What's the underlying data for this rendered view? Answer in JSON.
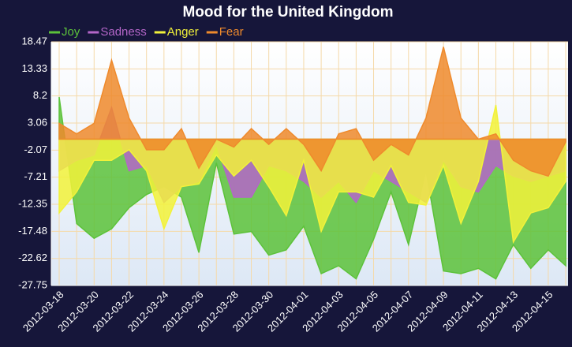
{
  "chart_data": {
    "type": "area",
    "title": "Mood for the United Kingdom",
    "categories": [
      "2012-03-18",
      null,
      "2012-03-20",
      null,
      "2012-03-22",
      null,
      "2012-03-24",
      null,
      "2012-03-26",
      null,
      "2012-03-28",
      null,
      "2012-03-30",
      null,
      "2012-04-01",
      null,
      "2012-04-03",
      null,
      "2012-04-05",
      null,
      "2012-04-07",
      null,
      "2012-04-09",
      null,
      "2012-04-11",
      null,
      "2012-04-13",
      null,
      "2012-04-15",
      null
    ],
    "series": [
      {
        "name": "Joy",
        "color": "#5cc23a",
        "values": [
          8,
          -16,
          -18.8,
          -17,
          -13,
          -10.5,
          -9,
          -11,
          -21.5,
          -4.5,
          -18,
          -17.5,
          -22,
          -21,
          -16.5,
          -25.5,
          -24,
          -26.5,
          -19,
          -10,
          -20,
          -6,
          -25,
          -25.5,
          -24.5,
          -26.5,
          -20,
          -24.5,
          -21,
          -24
        ]
      },
      {
        "name": "Sadness",
        "color": "#b466c8",
        "values": [
          -6,
          -4,
          -3,
          6,
          -6,
          -5,
          -12,
          -9,
          -8,
          -1,
          -11,
          -11,
          -5,
          -6,
          -8,
          -11,
          -8,
          -12,
          -6,
          -8,
          -10,
          -12,
          -4,
          -9,
          -10,
          -5,
          -7,
          -8,
          -7,
          -6
        ]
      },
      {
        "name": "Anger",
        "color": "#f2f23a",
        "values": [
          -14,
          -10,
          -4,
          -4,
          -2,
          -6,
          -17,
          -9,
          -8.5,
          -3,
          -7,
          -4,
          -9,
          -14.5,
          -4,
          -17.5,
          -10,
          -10,
          -11,
          -5,
          -12,
          -12.5,
          -5,
          -16,
          -8,
          6.5,
          -19.5,
          -14,
          -13,
          -8
        ]
      },
      {
        "name": "Fear",
        "color": "#ef8a2c",
        "values": [
          3,
          1,
          3,
          15,
          4,
          -2,
          -2,
          2,
          -5.5,
          0,
          -1.5,
          2,
          -1,
          2,
          -1,
          -6,
          1,
          2,
          -4,
          -1,
          -3,
          4,
          17.5,
          4,
          0,
          1,
          -4,
          -6,
          -7,
          -0.5
        ]
      }
    ],
    "ylim": [
      -27.75,
      18.47
    ],
    "yticks": [
      18.47,
      13.33,
      8.2,
      3.06,
      -2.07,
      -7.21,
      -12.35,
      -17.48,
      -22.62,
      -27.75
    ],
    "grid": true
  }
}
